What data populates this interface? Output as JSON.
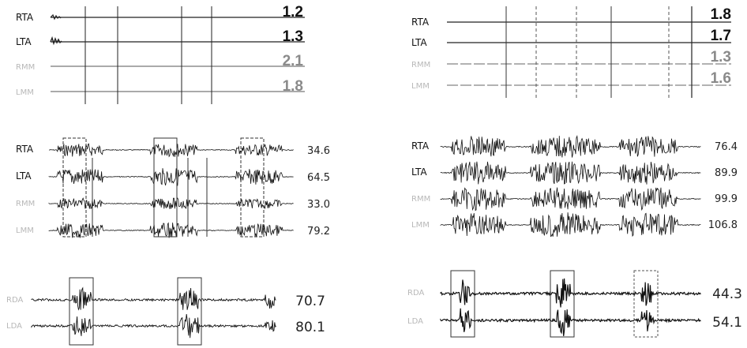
{
  "panels": [
    {
      "id": "top-left",
      "channels": [
        {
          "label": "RTA",
          "value": "1.2",
          "faint": false
        },
        {
          "label": "LTA",
          "value": "1.3",
          "faint": false
        },
        {
          "label": "RMM",
          "value": "2.1",
          "faint": true
        },
        {
          "label": "LMM",
          "value": "1.8",
          "faint": true
        }
      ]
    },
    {
      "id": "top-right",
      "channels": [
        {
          "label": "RTA",
          "value": "1.8",
          "faint": false
        },
        {
          "label": "LTA",
          "value": "1.7",
          "faint": false
        },
        {
          "label": "RMM",
          "value": "1.3",
          "faint": true
        },
        {
          "label": "LMM",
          "value": "1.6",
          "faint": true
        }
      ]
    },
    {
      "id": "middle-left",
      "channels": [
        {
          "label": "RTA",
          "value": "34.6",
          "faint": false
        },
        {
          "label": "LTA",
          "value": "64.5",
          "faint": false
        },
        {
          "label": "RMM",
          "value": "33.0",
          "faint": true
        },
        {
          "label": "LMM",
          "value": "79.2",
          "faint": true
        }
      ]
    },
    {
      "id": "middle-right",
      "channels": [
        {
          "label": "RTA",
          "value": "76.4",
          "faint": false
        },
        {
          "label": "LTA",
          "value": "89.9",
          "faint": false
        },
        {
          "label": "RMM",
          "value": "99.9",
          "faint": true
        },
        {
          "label": "LMM",
          "value": "106.8",
          "faint": true
        }
      ]
    },
    {
      "id": "bottom-left",
      "channels": [
        {
          "label": "RDA",
          "value": "70.7",
          "faint": true
        },
        {
          "label": "LDA",
          "value": "80.1",
          "faint": true
        }
      ]
    },
    {
      "id": "bottom-right",
      "channels": [
        {
          "label": "RDA",
          "value": "44.3",
          "faint": true
        },
        {
          "label": "LDA",
          "value": "54.1",
          "faint": true
        }
      ]
    }
  ]
}
